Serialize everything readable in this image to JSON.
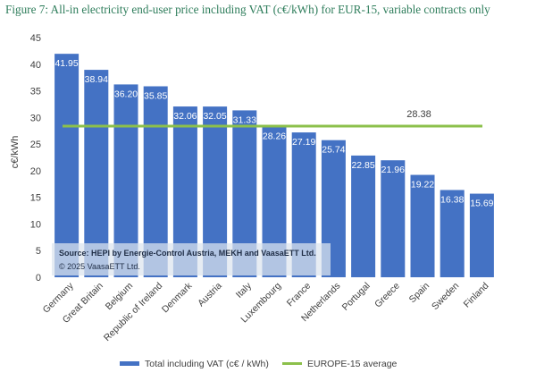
{
  "figure_title": "Figure 7: All-in electricity end-user price including VAT (c€/kWh) for EUR-15, variable contracts only",
  "source": {
    "line1": "Source: HEPI by Energie-Control Austria, MEKH and VaasaETT Ltd.",
    "line2": "© 2025 VaasaETT Ltd."
  },
  "colors": {
    "bar": "#4472c4",
    "average": "#8cc04b",
    "title": "#2e7d5b"
  },
  "chart_data": {
    "type": "bar",
    "categories": [
      "Germany",
      "Great Britain",
      "Belgium",
      "Republic of Ireland",
      "Denmark",
      "Austria",
      "Italy",
      "Luxembourg",
      "France",
      "Netherlands",
      "Portugal",
      "Greece",
      "Spain",
      "Sweden",
      "Finland"
    ],
    "series": [
      {
        "name": "Total including VAT (c€ / kWh)",
        "values": [
          41.95,
          38.94,
          36.2,
          35.85,
          32.06,
          32.05,
          31.33,
          28.26,
          27.19,
          25.74,
          22.85,
          21.96,
          19.22,
          16.38,
          15.69
        ]
      }
    ],
    "data_labels": [
      "41.95",
      "38.94",
      "36.20",
      "35.85",
      "32.06",
      "32.05",
      "31.33",
      "28.26",
      "27.19",
      "25.74",
      "22.85",
      "21.96",
      "19.22",
      "16.38",
      "15.69"
    ],
    "reference_line": {
      "name": "EUROPE-15 average",
      "value": 28.38,
      "label": "28.38"
    },
    "ylabel": "c€/kWh",
    "xlabel": "",
    "ylim": [
      0,
      45
    ],
    "yticks": [
      "0",
      "5",
      "10",
      "15",
      "20",
      "25",
      "30",
      "35",
      "40",
      "45"
    ],
    "grid": false,
    "legend": "bottom"
  }
}
